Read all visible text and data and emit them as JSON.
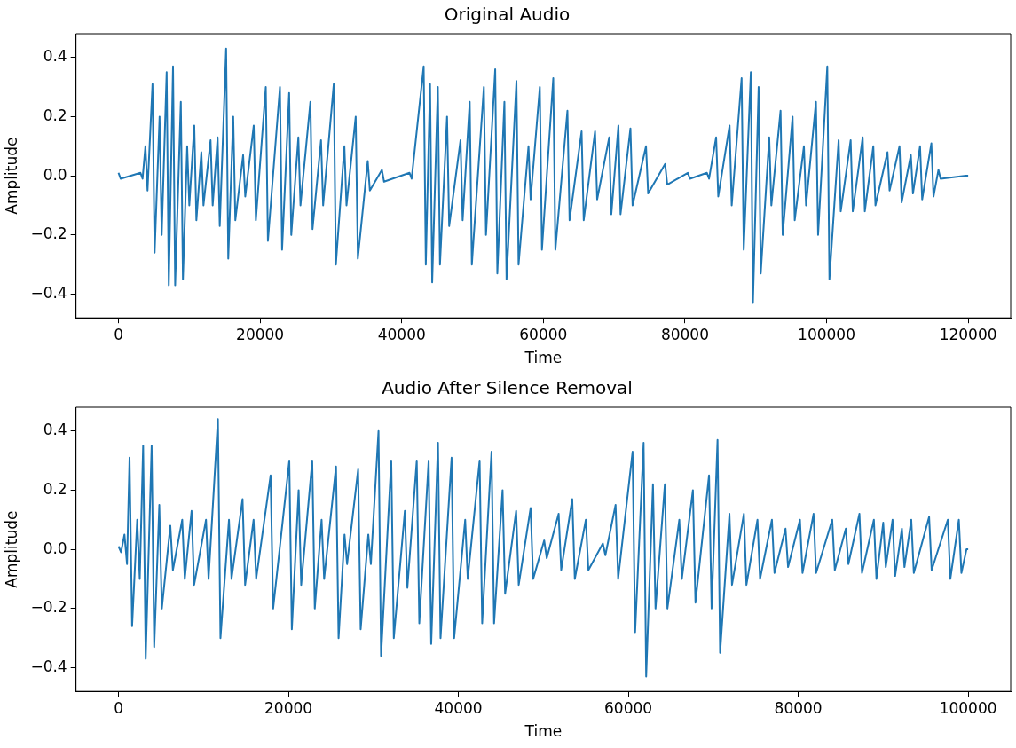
{
  "chart_data": [
    {
      "type": "line",
      "title": "Original Audio",
      "xlabel": "Time",
      "ylabel": "Amplitude",
      "xlim": [
        -6000,
        126000
      ],
      "ylim": [
        -0.48,
        0.48
      ],
      "xticks": [
        0,
        20000,
        40000,
        60000,
        80000,
        100000,
        120000
      ],
      "yticks": [
        {
          "value": -0.4,
          "label": "−0.4"
        },
        {
          "value": -0.2,
          "label": "−0.2"
        },
        {
          "value": 0,
          "label": "0.0"
        },
        {
          "value": 0.2,
          "label": "0.2"
        },
        {
          "value": 0.4,
          "label": "0.4"
        }
      ],
      "grid": false,
      "legend": false,
      "marker": "none",
      "series": [
        {
          "color": "#1f77b4",
          "x": [
            0,
            300,
            3100,
            3400,
            3800,
            4100,
            4800,
            5100,
            5800,
            6100,
            6800,
            7100,
            7700,
            8000,
            8800,
            9100,
            9700,
            10000,
            10700,
            11000,
            11700,
            12000,
            13000,
            13300,
            14000,
            14300,
            15200,
            15500,
            16200,
            16500,
            17600,
            17900,
            19100,
            19400,
            20800,
            21100,
            22800,
            23100,
            24100,
            24400,
            25400,
            25700,
            27100,
            27400,
            28600,
            28900,
            30400,
            30700,
            31900,
            32200,
            33500,
            33800,
            35200,
            35500,
            37200,
            37500,
            41100,
            41400,
            43100,
            43400,
            44000,
            44300,
            45100,
            45400,
            46400,
            46700,
            48300,
            48600,
            49600,
            49900,
            51600,
            51900,
            53200,
            53500,
            54500,
            54800,
            56200,
            56500,
            57900,
            58200,
            59500,
            59800,
            61400,
            61700,
            63400,
            63700,
            65400,
            65700,
            67300,
            67600,
            69300,
            69600,
            70600,
            70900,
            72300,
            72600,
            74500,
            74800,
            77200,
            77500,
            80400,
            80700,
            83100,
            83400,
            84400,
            84700,
            86300,
            86600,
            88000,
            88300,
            89300,
            89600,
            90400,
            90700,
            91900,
            92200,
            93500,
            93800,
            95200,
            95500,
            96800,
            97100,
            98500,
            98800,
            100100,
            100400,
            101700,
            102000,
            103400,
            103700,
            105100,
            105400,
            106600,
            106900,
            108600,
            108900,
            110300,
            110600,
            111900,
            112200,
            113200,
            113500,
            114800,
            115100,
            115800,
            116100,
            119700,
            120000
          ],
          "values": [
            0.01,
            -0.01,
            0.01,
            -0.01,
            0.1,
            -0.05,
            0.31,
            -0.26,
            0.2,
            -0.2,
            0.35,
            -0.37,
            0.37,
            -0.37,
            0.25,
            -0.35,
            0.1,
            -0.1,
            0.17,
            -0.15,
            0.08,
            -0.1,
            0.12,
            -0.1,
            0.13,
            -0.17,
            0.43,
            -0.28,
            0.2,
            -0.15,
            0.07,
            -0.07,
            0.17,
            -0.15,
            0.3,
            -0.22,
            0.3,
            -0.25,
            0.28,
            -0.2,
            0.13,
            -0.1,
            0.25,
            -0.18,
            0.12,
            -0.1,
            0.31,
            -0.3,
            0.1,
            -0.1,
            0.2,
            -0.28,
            0.05,
            -0.05,
            0.02,
            -0.02,
            0.01,
            -0.01,
            0.37,
            -0.3,
            0.31,
            -0.36,
            0.3,
            -0.3,
            0.2,
            -0.17,
            0.12,
            -0.15,
            0.25,
            -0.3,
            0.3,
            -0.2,
            0.36,
            -0.33,
            0.25,
            -0.35,
            0.32,
            -0.3,
            0.1,
            -0.08,
            0.3,
            -0.25,
            0.33,
            -0.25,
            0.22,
            -0.15,
            0.15,
            -0.15,
            0.15,
            -0.08,
            0.13,
            -0.13,
            0.17,
            -0.13,
            0.16,
            -0.1,
            0.1,
            -0.06,
            0.04,
            -0.03,
            0.01,
            -0.01,
            0.01,
            -0.01,
            0.13,
            -0.07,
            0.17,
            -0.1,
            0.33,
            -0.25,
            0.35,
            -0.43,
            0.3,
            -0.33,
            0.13,
            -0.1,
            0.22,
            -0.2,
            0.2,
            -0.15,
            0.1,
            -0.1,
            0.25,
            -0.2,
            0.37,
            -0.35,
            0.12,
            -0.12,
            0.12,
            -0.12,
            0.13,
            -0.12,
            0.1,
            -0.1,
            0.08,
            -0.05,
            0.1,
            -0.09,
            0.07,
            -0.06,
            0.1,
            -0.08,
            0.11,
            -0.07,
            0.02,
            -0.01,
            0,
            0
          ]
        }
      ]
    },
    {
      "type": "line",
      "title": "Audio After Silence Removal",
      "xlabel": "Time",
      "ylabel": "Amplitude",
      "xlim": [
        -5000,
        105000
      ],
      "ylim": [
        -0.48,
        0.48
      ],
      "xticks": [
        0,
        20000,
        40000,
        60000,
        80000,
        100000
      ],
      "yticks": [
        {
          "value": -0.4,
          "label": "−0.4"
        },
        {
          "value": -0.2,
          "label": "−0.2"
        },
        {
          "value": 0,
          "label": "0.0"
        },
        {
          "value": 0.2,
          "label": "0.2"
        },
        {
          "value": 0.4,
          "label": "0.4"
        }
      ],
      "grid": false,
      "legend": false,
      "marker": "none",
      "series": [
        {
          "color": "#1f77b4",
          "x": [
            0,
            300,
            700,
            1000,
            1300,
            1600,
            2200,
            2500,
            2900,
            3200,
            3900,
            4200,
            4800,
            5100,
            6100,
            6400,
            7500,
            7800,
            8600,
            8900,
            10300,
            10600,
            11700,
            12000,
            13000,
            13300,
            14600,
            14900,
            15900,
            16200,
            17900,
            18200,
            20100,
            20400,
            21200,
            21500,
            22800,
            23100,
            23900,
            24200,
            25600,
            25900,
            26600,
            26900,
            28200,
            28500,
            29400,
            29700,
            30600,
            30900,
            32100,
            32400,
            33700,
            34000,
            35100,
            35400,
            36500,
            36800,
            37600,
            37900,
            39200,
            39500,
            40800,
            41100,
            42500,
            42800,
            43900,
            44200,
            45200,
            45500,
            46800,
            47100,
            48500,
            48800,
            50100,
            50400,
            51800,
            52100,
            53400,
            53700,
            55000,
            55300,
            57000,
            57300,
            58500,
            58800,
            60500,
            60800,
            61800,
            62100,
            62900,
            63200,
            64300,
            64600,
            66000,
            66300,
            67600,
            67900,
            69500,
            69800,
            70500,
            70800,
            71900,
            72200,
            73600,
            73900,
            75200,
            75500,
            76900,
            77200,
            78500,
            78800,
            80200,
            80500,
            81800,
            82100,
            84000,
            84300,
            85600,
            85900,
            87200,
            87500,
            88900,
            89200,
            90000,
            90300,
            91100,
            91400,
            92200,
            92500,
            93300,
            93600,
            95400,
            95700,
            97600,
            97900,
            98900,
            99200,
            99800,
            100000
          ],
          "values": [
            0.01,
            -0.01,
            0.05,
            -0.05,
            0.31,
            -0.26,
            0.1,
            -0.1,
            0.35,
            -0.37,
            0.35,
            -0.33,
            0.15,
            -0.2,
            0.08,
            -0.07,
            0.1,
            -0.1,
            0.13,
            -0.12,
            0.1,
            -0.1,
            0.44,
            -0.3,
            0.1,
            -0.1,
            0.17,
            -0.12,
            0.1,
            -0.1,
            0.25,
            -0.2,
            0.3,
            -0.27,
            0.2,
            -0.12,
            0.3,
            -0.2,
            0.1,
            -0.1,
            0.28,
            -0.3,
            0.05,
            -0.05,
            0.27,
            -0.27,
            0.05,
            -0.05,
            0.4,
            -0.36,
            0.3,
            -0.3,
            0.13,
            -0.13,
            0.3,
            -0.25,
            0.3,
            -0.32,
            0.36,
            -0.3,
            0.31,
            -0.3,
            0.1,
            -0.1,
            0.3,
            -0.25,
            0.33,
            -0.25,
            0.2,
            -0.15,
            0.13,
            -0.12,
            0.14,
            -0.1,
            0.03,
            -0.03,
            0.12,
            -0.07,
            0.17,
            -0.1,
            0.1,
            -0.07,
            0.02,
            -0.02,
            0.15,
            -0.1,
            0.33,
            -0.28,
            0.36,
            -0.43,
            0.22,
            -0.2,
            0.22,
            -0.2,
            0.1,
            -0.1,
            0.2,
            -0.18,
            0.25,
            -0.2,
            0.37,
            -0.35,
            0.12,
            -0.12,
            0.12,
            -0.12,
            0.1,
            -0.1,
            0.1,
            -0.08,
            0.07,
            -0.06,
            0.1,
            -0.08,
            0.12,
            -0.08,
            0.1,
            -0.07,
            0.07,
            -0.05,
            0.12,
            -0.08,
            0.1,
            -0.1,
            0.09,
            -0.06,
            0.1,
            -0.09,
            0.07,
            -0.06,
            0.1,
            -0.08,
            0.11,
            -0.07,
            0.1,
            -0.1,
            0.1,
            -0.08,
            0,
            0
          ]
        }
      ]
    }
  ]
}
